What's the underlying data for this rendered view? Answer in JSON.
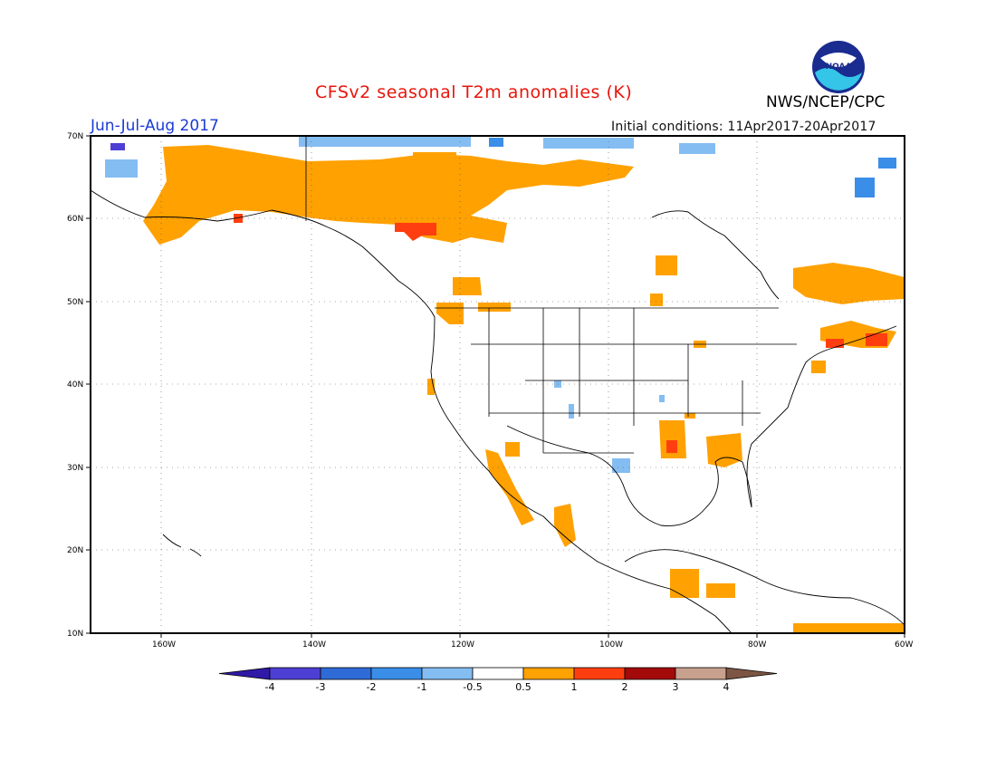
{
  "title": "CFSv2 seasonal T2m anomalies (K)",
  "agency": "NWS/NCEP/CPC",
  "logo_text": "NOAA",
  "period": "Jun-Jul-Aug 2017",
  "initial_conditions": "Initial conditions: 11Apr2017-20Apr2017",
  "lat_labels": [
    "70N",
    "60N",
    "50N",
    "40N",
    "30N",
    "20N",
    "10N"
  ],
  "lon_labels": [
    "160W",
    "140W",
    "120W",
    "100W",
    "80W",
    "60W"
  ],
  "colorbar": {
    "colors": [
      "#3019a6",
      "#4d3fd4",
      "#2e6bd6",
      "#3a8ee8",
      "#84bdf2",
      "#ffffff",
      "#ffa100",
      "#ff3e10",
      "#a30a0a",
      "#c8a08e",
      "#7d5544"
    ],
    "labels": [
      "-4",
      "-3",
      "-2",
      "-1",
      "-0.5",
      "0.5",
      "1",
      "2",
      "3",
      "4"
    ]
  },
  "colors": {
    "warm_low": "#ffa100",
    "warm_mid": "#ff3e10",
    "cool_low": "#84bdf2",
    "cool_mid": "#3a8ee8",
    "title": "#e8160c",
    "period": "#1a3bd8"
  }
}
